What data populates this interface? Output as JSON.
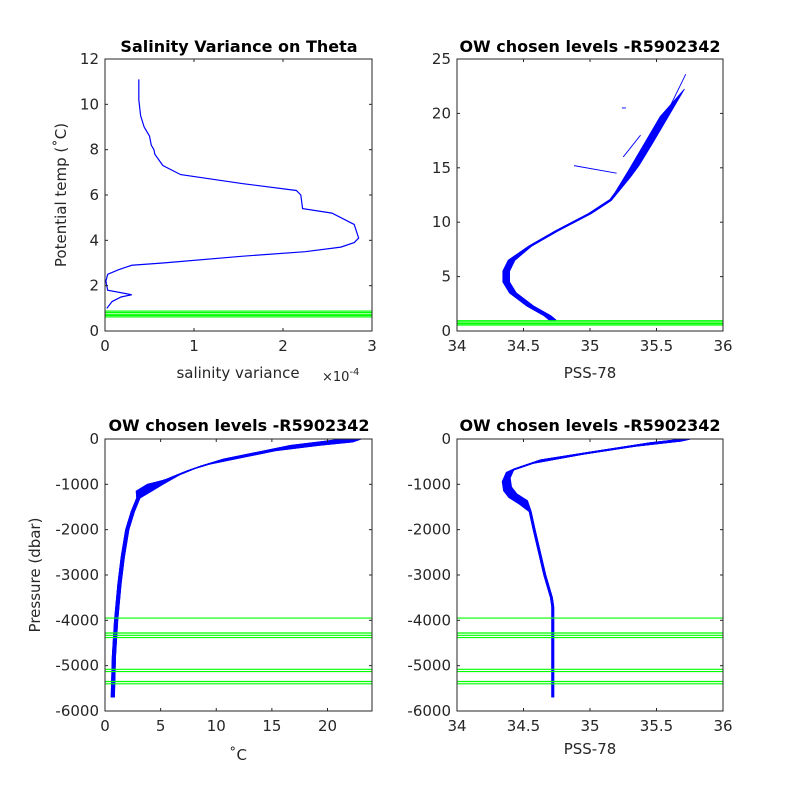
{
  "chart_data": [
    {
      "type": "line",
      "title": "Salinity Variance on Theta",
      "xlabel": "salinity variance",
      "x_exponent_prefix": "×10",
      "x_exponent": "-4",
      "ylabel": "Potential temp (˚C)",
      "xlim": [
        0,
        3
      ],
      "ylim": [
        0,
        12
      ],
      "xticks": [
        "0",
        "1",
        "2",
        "3"
      ],
      "yticks": [
        "0",
        "2",
        "4",
        "6",
        "8",
        "10",
        "12"
      ],
      "x_scale": 0.0001,
      "colors": {
        "profile": "#0000ff",
        "chosen_levels": "#00ff00"
      },
      "series": [
        {
          "x": [
            0.38,
            0.38,
            0.4,
            0.44,
            0.5,
            0.52,
            0.55,
            0.56,
            0.65,
            0.85,
            1.55,
            2.15,
            2.2,
            2.22,
            2.55,
            2.75,
            2.8,
            2.85,
            2.8,
            2.65,
            2.25,
            1.55,
            0.65,
            0.3,
            0.15,
            0.03,
            0.01,
            0.03,
            0.3,
            0.18,
            0.08,
            0.02
          ],
          "y": [
            11.1,
            10.2,
            9.5,
            9.0,
            8.6,
            8.2,
            8.0,
            7.8,
            7.3,
            6.9,
            6.5,
            6.2,
            6.0,
            5.4,
            5.2,
            4.8,
            4.7,
            4.1,
            3.9,
            3.7,
            3.5,
            3.3,
            3.0,
            2.9,
            2.7,
            2.5,
            2.2,
            1.8,
            1.6,
            1.5,
            1.3,
            1.0
          ]
        }
      ],
      "chosen_levels_y": [
        0.62,
        0.68,
        0.74,
        0.82,
        0.88
      ]
    },
    {
      "type": "line",
      "title": "OW chosen levels -R5902342",
      "xlabel": "PSS-78",
      "ylabel": "",
      "xlim": [
        34,
        36
      ],
      "ylim": [
        0,
        25
      ],
      "xticks": [
        "34",
        "34.5",
        "35",
        "35.5",
        "36"
      ],
      "yticks": [
        "0",
        "5",
        "10",
        "15",
        "20",
        "25"
      ],
      "colors": {
        "profile": "#0000ff",
        "chosen_levels": "#00ff00"
      },
      "profile_template": {
        "x": [
          34.72,
          34.68,
          34.55,
          34.42,
          34.37,
          34.37,
          34.41,
          34.55,
          34.75,
          35.0,
          35.15,
          35.22,
          35.28,
          35.38,
          35.5,
          35.62
        ],
        "y": [
          1.0,
          1.4,
          2.3,
          3.5,
          4.5,
          5.5,
          6.5,
          7.8,
          9.2,
          10.8,
          12.0,
          13.0,
          14.0,
          16.0,
          18.5,
          21.0
        ]
      },
      "profile_count": 30,
      "outliers": [
        {
          "x": [
            34.88,
            35.2
          ],
          "y": [
            15.2,
            14.5
          ]
        },
        {
          "x": [
            35.27,
            35.24
          ],
          "y": [
            20.5,
            20.5
          ]
        },
        {
          "x": [
            35.38,
            35.25
          ],
          "y": [
            18.0,
            16.0
          ]
        },
        {
          "x": [
            35.72,
            35.6
          ],
          "y": [
            23.6,
            20.6
          ]
        }
      ],
      "chosen_levels_y": [
        0.55,
        0.68,
        0.82,
        0.95
      ]
    },
    {
      "type": "line",
      "title": "OW chosen levels -R5902342",
      "xlabel": "˚C",
      "ylabel": "Pressure (dbar)",
      "xlim": [
        0,
        24
      ],
      "ylim": [
        -6000,
        0
      ],
      "xticks": [
        "0",
        "5",
        "10",
        "15",
        "20"
      ],
      "yticks": [
        "-6000",
        "-5000",
        "-4000",
        "-3000",
        "-2000",
        "-1000",
        "0"
      ],
      "colors": {
        "profile": "#0000ff",
        "chosen_levels": "#00ff00"
      },
      "profile_template": {
        "x": [
          0.7,
          0.8,
          1.0,
          1.3,
          1.6,
          2.0,
          2.5,
          3.0,
          3.5,
          4.5,
          6.0,
          8.0,
          10.0,
          13.0,
          16.0,
          20.0,
          23.0
        ],
        "y": [
          -5700,
          -4800,
          -4000,
          -3200,
          -2600,
          -2000,
          -1600,
          -1300,
          -1150,
          -1000,
          -850,
          -650,
          -500,
          -350,
          -200,
          -80,
          -5
        ]
      },
      "profile_count": 30,
      "chosen_levels_y": [
        -3950,
        -4280,
        -4330,
        -4380,
        -5080,
        -5130,
        -5350,
        -5400
      ]
    },
    {
      "type": "line",
      "title": "OW chosen levels -R5902342",
      "xlabel": "PSS-78",
      "ylabel": "",
      "xlim": [
        34,
        36
      ],
      "ylim": [
        -6000,
        0
      ],
      "xticks": [
        "34",
        "34.5",
        "35",
        "35.5",
        "36"
      ],
      "yticks": [
        "-6000",
        "-5000",
        "-4000",
        "-3000",
        "-2000",
        "-1000",
        "0"
      ],
      "colors": {
        "profile": "#0000ff",
        "chosen_levels": "#00ff00"
      },
      "profile_template": {
        "x": [
          34.72,
          34.72,
          34.72,
          34.71,
          34.66,
          34.62,
          34.58,
          34.55,
          34.5,
          34.42,
          34.38,
          34.37,
          34.4,
          34.6,
          35.0,
          35.4,
          35.75
        ],
        "y": [
          -5700,
          -4500,
          -3700,
          -3500,
          -3000,
          -2500,
          -2000,
          -1600,
          -1400,
          -1250,
          -1100,
          -900,
          -700,
          -500,
          -300,
          -120,
          -5
        ]
      },
      "profile_count": 30,
      "chosen_levels_y": [
        -3950,
        -4280,
        -4330,
        -4380,
        -5080,
        -5130,
        -5350,
        -5400
      ]
    }
  ]
}
